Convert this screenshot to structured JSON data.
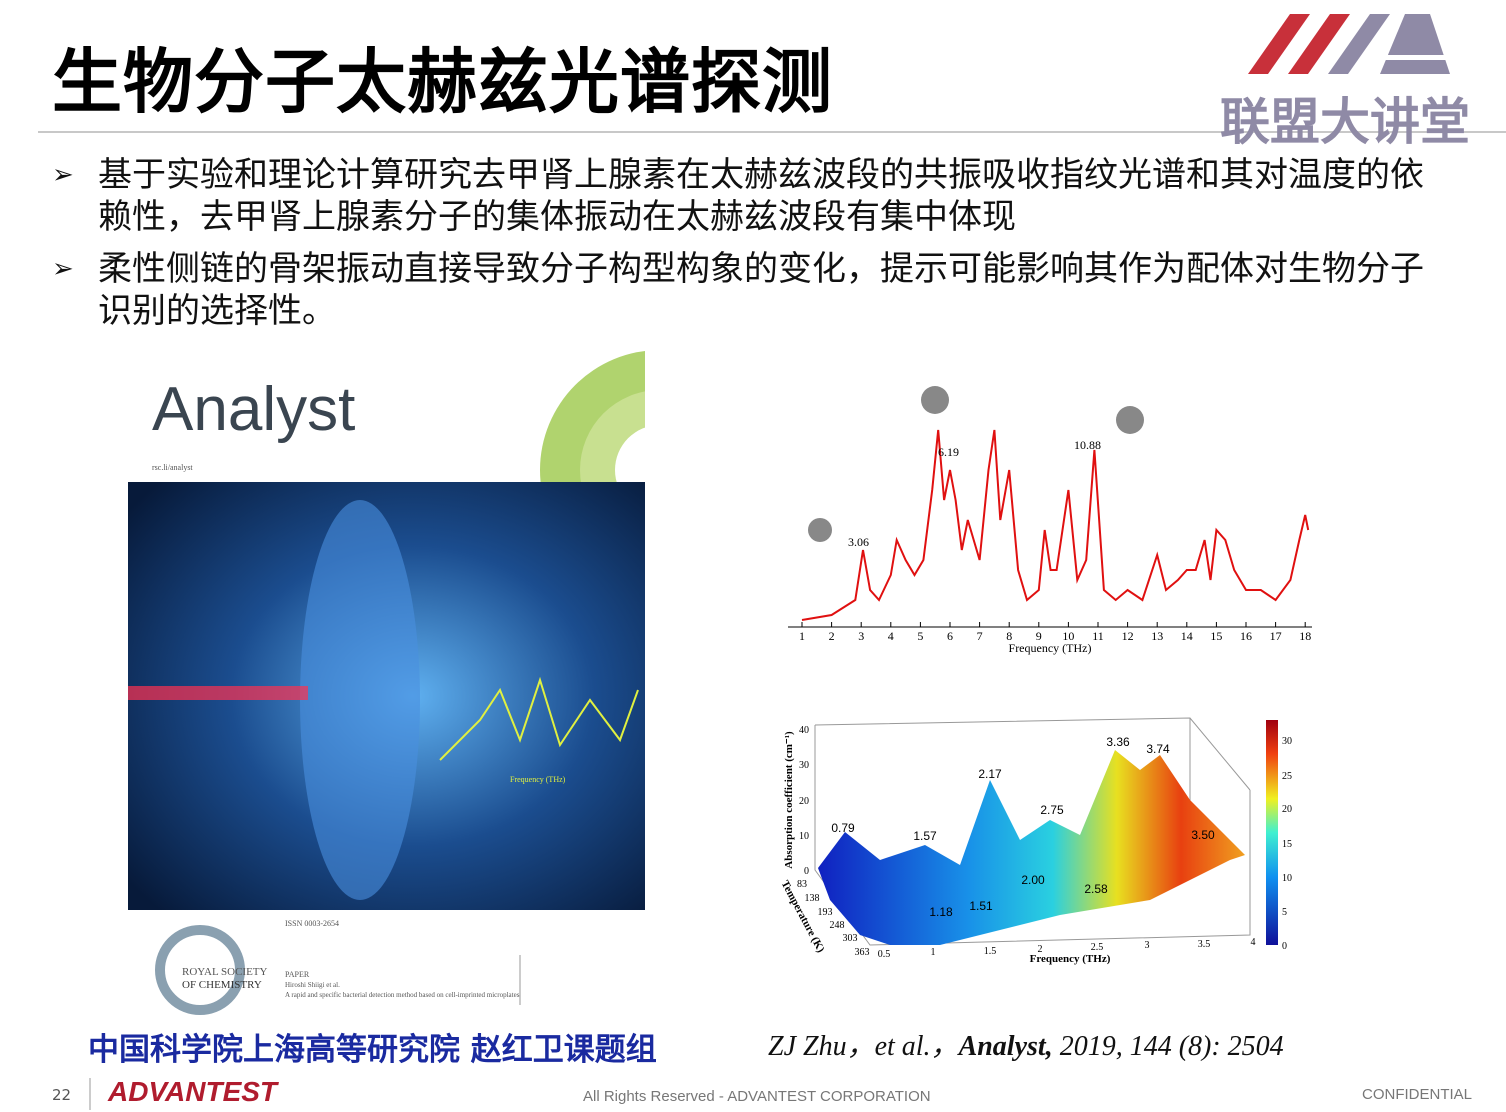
{
  "header": {
    "title": "生物分子太赫兹光谱探测",
    "logo_text": "联盟大讲堂"
  },
  "bullets": [
    "基于实验和理论计算研究去甲肾上腺素在太赫兹波段的共振吸收指纹光谱和其对温度的依赖性，去甲肾上腺素分子的集体振动在太赫兹波段有集中体现",
    "柔性侧链的骨架振动直接导致分子构型构象的变化，提示可能影响其作为配体对生物分子识别的选择性。"
  ],
  "cover": {
    "journal": "Analyst",
    "url": "rsc.li/analyst",
    "axis_label": "Frequency (THz)",
    "issn": "ISSN 0003-2654",
    "publisher_line1": "ROYAL SOCIETY",
    "publisher_line2": "OF CHEMISTRY",
    "section": "PAPER",
    "authors": "Hiroshi Shiigi et al.",
    "paper_title": "A rapid and specific bacterial detection method based on cell-imprinted microplates"
  },
  "spectrum": {
    "xticks": [
      1,
      2,
      3,
      4,
      5,
      6,
      7,
      8,
      9,
      10,
      11,
      12,
      13,
      14,
      15,
      16,
      17,
      18
    ],
    "x_label": "Frequency (THz)",
    "peak_labels": [
      "3.06",
      "6.19",
      "10.88"
    ]
  },
  "surface_plot": {
    "z_label": "Absorption coefficient (cm⁻¹)",
    "zticks": [
      0,
      10,
      20,
      30,
      40
    ],
    "y_label": "Temperature (K)",
    "yticks": [
      83,
      138,
      193,
      248,
      303,
      363
    ],
    "x_label": "Frequency (THz)",
    "xticks": [
      0.5,
      1,
      1.5,
      2,
      2.5,
      3,
      3.5,
      4
    ],
    "colorbar_ticks": [
      0,
      5,
      10,
      15,
      20,
      25,
      30
    ],
    "peak_labels": [
      "0.79",
      "1.57",
      "2.17",
      "2.75",
      "3.36",
      "3.74",
      "3.50",
      "2.00",
      "2.58",
      "1.18",
      "1.51"
    ]
  },
  "caption": {
    "group": "中国科学院上海高等研究院 赵红卫课题组",
    "citation_authors": "ZJ Zhu，et al.，",
    "citation_journal": "Analyst,",
    "citation_details": "2019, 144 (8): 2504"
  },
  "footer": {
    "page": "22",
    "brand": "ADVANTEST",
    "rights": "All Rights Reserved - ADVANTEST CORPORATION",
    "confidential": "CONFIDENTIAL"
  }
}
